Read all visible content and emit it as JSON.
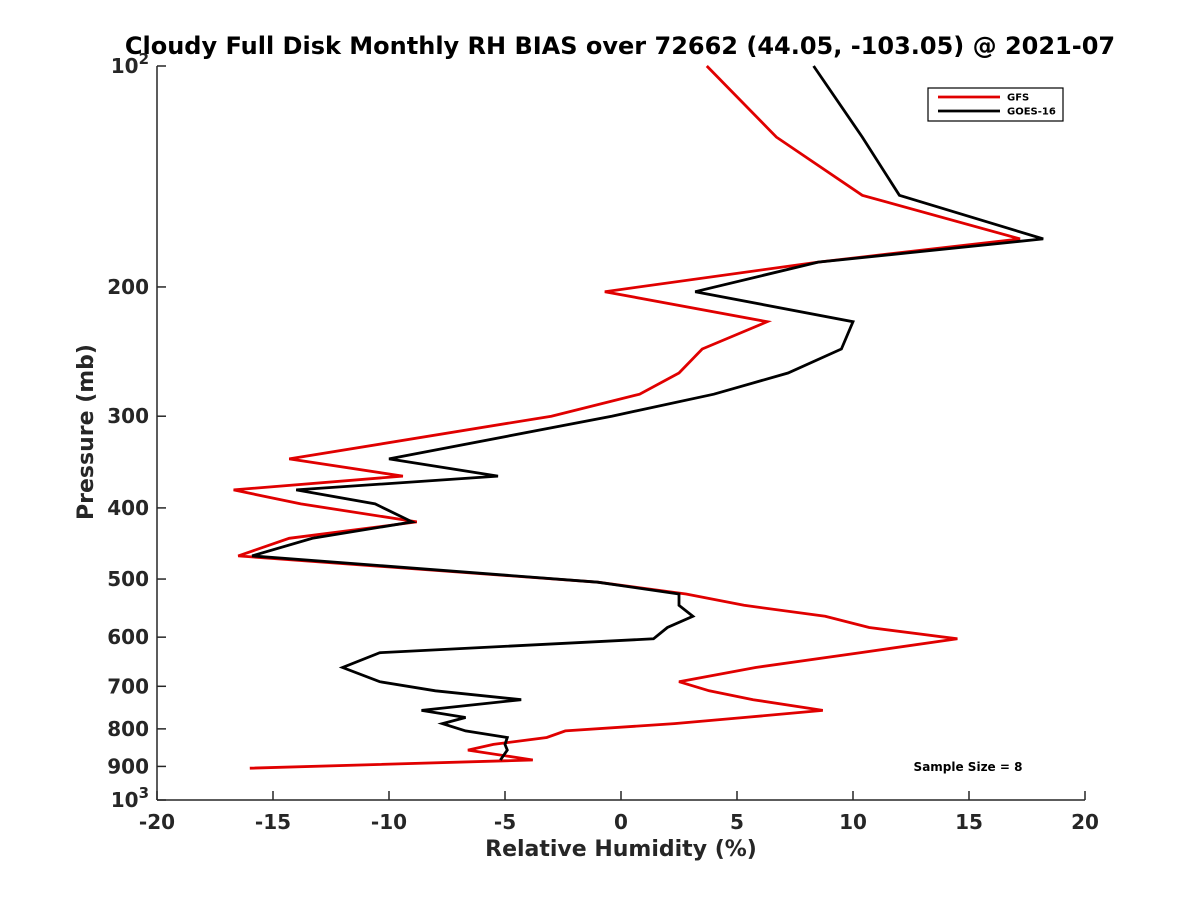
{
  "chart_data": {
    "type": "line",
    "title": "Cloudy Full Disk Monthly RH BIAS over 72662 (44.05, -103.05) @ 2021-07",
    "xlabel": "Relative Humidity (%)",
    "ylabel": "Pressure (mb)",
    "xlim": [
      -20,
      20
    ],
    "ylim": [
      100,
      1000
    ],
    "y_scale": "log",
    "y_reversed": true,
    "xticks": [
      -20,
      -15,
      -10,
      -5,
      0,
      5,
      10,
      15,
      20
    ],
    "xtick_labels": [
      "-20",
      "-15",
      "-10",
      "-5",
      "0",
      "5",
      "10",
      "15",
      "20"
    ],
    "yticks": [
      100,
      200,
      300,
      400,
      500,
      600,
      700,
      800,
      900,
      1000
    ],
    "ytick_labels": [
      {
        "base": "10",
        "exp": "2"
      },
      {
        "base": "200",
        "exp": ""
      },
      {
        "base": "300",
        "exp": ""
      },
      {
        "base": "400",
        "exp": ""
      },
      {
        "base": "500",
        "exp": ""
      },
      {
        "base": "600",
        "exp": ""
      },
      {
        "base": "700",
        "exp": ""
      },
      {
        "base": "800",
        "exp": ""
      },
      {
        "base": "900",
        "exp": ""
      },
      {
        "base": "10",
        "exp": "3"
      }
    ],
    "legend_position": "top-right",
    "grid": false,
    "annotation": "Sample Size = 8",
    "series": [
      {
        "name": "GFS",
        "color": "#e00000",
        "points": [
          [
            3.7,
            100
          ],
          [
            6.7,
            125
          ],
          [
            10.4,
            150
          ],
          [
            17.2,
            172
          ],
          [
            8.5,
            185
          ],
          [
            -0.7,
            203
          ],
          [
            6.3,
            223
          ],
          [
            3.5,
            243
          ],
          [
            2.5,
            262
          ],
          [
            0.8,
            280
          ],
          [
            -3.0,
            300
          ],
          [
            -14.3,
            343
          ],
          [
            -9.4,
            362
          ],
          [
            -16.7,
            378
          ],
          [
            -13.8,
            395
          ],
          [
            -8.8,
            418
          ],
          [
            -14.3,
            440
          ],
          [
            -16.5,
            465
          ],
          [
            -1.0,
            505
          ],
          [
            2.8,
            524
          ],
          [
            5.3,
            543
          ],
          [
            8.8,
            562
          ],
          [
            10.7,
            582
          ],
          [
            14.5,
            603
          ],
          [
            10.3,
            630
          ],
          [
            5.8,
            660
          ],
          [
            2.5,
            690
          ],
          [
            3.8,
            710
          ],
          [
            5.7,
            730
          ],
          [
            8.7,
            755
          ],
          [
            5.3,
            772
          ],
          [
            2.3,
            787
          ],
          [
            -2.4,
            805
          ],
          [
            -3.2,
            822
          ],
          [
            -5.5,
            840
          ],
          [
            -6.6,
            855
          ],
          [
            -3.8,
            882
          ],
          [
            -16.0,
            905
          ]
        ]
      },
      {
        "name": "GOES-16",
        "color": "#000000",
        "points": [
          [
            8.3,
            100
          ],
          [
            10.4,
            125
          ],
          [
            12.0,
            150
          ],
          [
            18.2,
            172
          ],
          [
            8.5,
            185
          ],
          [
            3.2,
            203
          ],
          [
            10.0,
            223
          ],
          [
            9.5,
            243
          ],
          [
            7.2,
            262
          ],
          [
            4.0,
            280
          ],
          [
            -0.4,
            300
          ],
          [
            -10.0,
            343
          ],
          [
            -5.3,
            362
          ],
          [
            -14.0,
            378
          ],
          [
            -10.6,
            395
          ],
          [
            -9.0,
            418
          ],
          [
            -13.3,
            440
          ],
          [
            -15.9,
            465
          ],
          [
            -1.0,
            505
          ],
          [
            2.5,
            524
          ],
          [
            2.5,
            543
          ],
          [
            3.1,
            562
          ],
          [
            2.0,
            582
          ],
          [
            1.4,
            603
          ],
          [
            -10.4,
            630
          ],
          [
            -12.0,
            660
          ],
          [
            -10.4,
            690
          ],
          [
            -8.0,
            710
          ],
          [
            -4.3,
            730
          ],
          [
            -8.6,
            755
          ],
          [
            -6.7,
            772
          ],
          [
            -7.7,
            787
          ],
          [
            -6.7,
            805
          ],
          [
            -4.9,
            822
          ],
          [
            -5.0,
            840
          ],
          [
            -4.9,
            855
          ],
          [
            -5.2,
            882
          ]
        ]
      }
    ]
  }
}
